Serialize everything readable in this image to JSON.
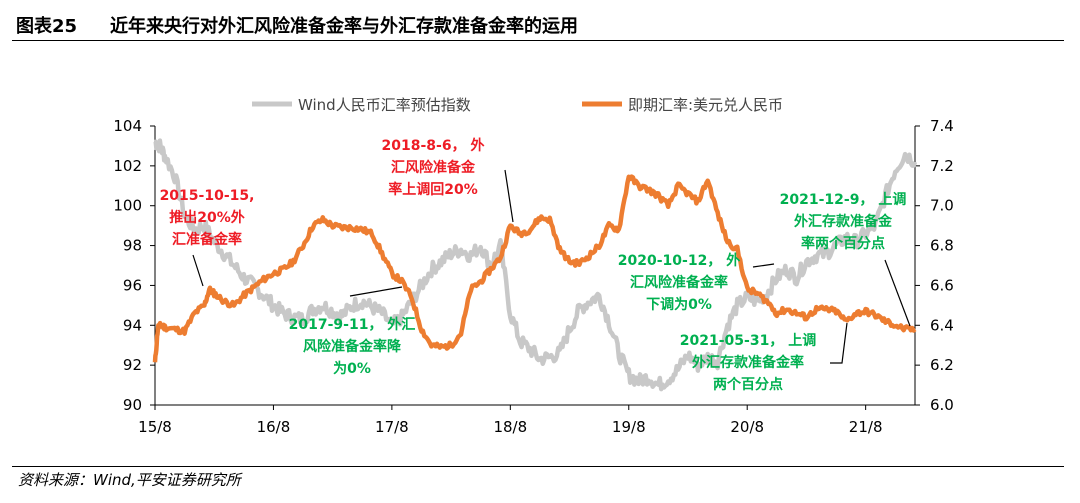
{
  "header": {
    "figure_no": "图表25",
    "title": "近年来央行对外汇风险准备金率与外汇存款准备金率的运用"
  },
  "footer": {
    "source": "资料来源：Wind,平安证券研究所"
  },
  "colors": {
    "index_series": "#c8c8c8",
    "spot_series": "#ed7d31",
    "ann_red": "#ee1c25",
    "ann_green": "#00b050"
  },
  "chart_data": {
    "type": "line",
    "x_ticks": [
      "15/8",
      "16/8",
      "17/8",
      "18/8",
      "19/8",
      "20/8",
      "21/8"
    ],
    "x_tick_t": [
      0,
      12,
      24,
      36,
      48,
      60,
      72
    ],
    "x_range": [
      0,
      77
    ],
    "y_left": {
      "min": 90,
      "max": 104,
      "ticks": [
        "90",
        "92",
        "94",
        "96",
        "98",
        "100",
        "102",
        "104"
      ]
    },
    "y_right": {
      "min": 6.0,
      "max": 7.4,
      "ticks": [
        "6.0",
        "6.2",
        "6.4",
        "6.6",
        "6.8",
        "7.0",
        "7.2",
        "7.4"
      ]
    },
    "legend": [
      "Wind人民币汇率预估指数",
      "即期汇率:美元兑人民币"
    ],
    "series": [
      {
        "name": "Wind人民币汇率预估指数",
        "axis": "left",
        "t": [
          0,
          0.5,
          1,
          2,
          3,
          4,
          5,
          6,
          7,
          8,
          9,
          10,
          11,
          12,
          13,
          14,
          15,
          16,
          17,
          18,
          19,
          20,
          21,
          22,
          23,
          24,
          25,
          26,
          27,
          28,
          29,
          30,
          31,
          32,
          33,
          34,
          35,
          36,
          37,
          38,
          39,
          40,
          41,
          42,
          43,
          44,
          45,
          46,
          47,
          48,
          49,
          50,
          51,
          52,
          53,
          54,
          55,
          56,
          57,
          58,
          59,
          60,
          61,
          62,
          63,
          64,
          65,
          66,
          67,
          68,
          69,
          70,
          71,
          72,
          73,
          74,
          75,
          76,
          77
        ],
        "values": [
          103.2,
          103.0,
          102.5,
          101.5,
          99.5,
          98.8,
          99.0,
          98.2,
          97.6,
          97.0,
          96.4,
          96.0,
          95.5,
          95.0,
          94.6,
          94.4,
          94.3,
          94.8,
          95.0,
          94.7,
          94.5,
          95.0,
          95.2,
          94.9,
          94.6,
          94.0,
          94.4,
          95.2,
          96.0,
          96.8,
          97.2,
          97.6,
          97.8,
          97.5,
          98.0,
          97.0,
          98.0,
          94.6,
          93.2,
          92.8,
          92.3,
          92.4,
          92.6,
          93.8,
          94.8,
          95.2,
          95.5,
          94.2,
          92.6,
          91.5,
          91.2,
          91.4,
          91.0,
          91.3,
          91.8,
          92.5,
          92.0,
          92.4,
          92.2,
          94.0,
          95.0,
          95.4,
          95.2,
          95.6,
          96.4,
          96.8,
          96.4,
          97.2,
          97.5,
          97.6,
          98.0,
          98.4,
          98.2,
          98.6,
          99.0,
          100.5,
          101.8,
          102.6,
          102.2
        ]
      },
      {
        "name": "即期汇率:美元兑人民币",
        "axis": "right",
        "t": [
          0,
          0.3,
          0.6,
          1,
          2,
          3,
          4,
          5,
          5.5,
          6,
          7,
          8,
          9,
          10,
          11,
          12,
          13,
          14,
          15,
          16,
          17,
          18,
          19,
          20,
          21,
          22,
          23,
          24,
          25,
          26,
          27,
          28,
          29,
          30,
          31,
          32,
          33,
          34,
          35,
          36,
          37,
          38,
          39,
          40,
          41,
          42,
          43,
          44,
          45,
          46,
          47,
          48,
          49,
          50,
          51,
          52,
          53,
          54,
          55,
          56,
          57,
          58,
          59,
          60,
          61,
          62,
          63,
          64,
          65,
          66,
          67,
          68,
          69,
          70,
          71,
          72,
          73,
          74,
          75,
          76,
          77
        ],
        "values": [
          6.21,
          6.39,
          6.4,
          6.39,
          6.38,
          6.37,
          6.46,
          6.5,
          6.58,
          6.56,
          6.52,
          6.5,
          6.55,
          6.59,
          6.63,
          6.66,
          6.68,
          6.72,
          6.8,
          6.9,
          6.93,
          6.9,
          6.89,
          6.89,
          6.88,
          6.86,
          6.76,
          6.66,
          6.62,
          6.54,
          6.38,
          6.3,
          6.29,
          6.3,
          6.36,
          6.58,
          6.62,
          6.68,
          6.74,
          6.9,
          6.86,
          6.88,
          6.94,
          6.93,
          6.78,
          6.72,
          6.71,
          6.75,
          6.8,
          6.9,
          6.88,
          7.15,
          7.1,
          7.08,
          7.05,
          7.0,
          7.1,
          7.06,
          7.02,
          7.13,
          6.96,
          6.82,
          6.78,
          6.58,
          6.56,
          6.52,
          6.46,
          6.48,
          6.46,
          6.44,
          6.48,
          6.48,
          6.47,
          6.42,
          6.46,
          6.47,
          6.45,
          6.42,
          6.4,
          6.38,
          6.38
        ]
      }
    ],
    "annotations": [
      {
        "lines": [
          "2015-10-15,",
          "推出20%外",
          "汇准备金率"
        ],
        "color": "red"
      },
      {
        "lines": [
          "2018-8-6， 外",
          "汇风险准备金",
          "率上调回20%"
        ],
        "color": "red"
      },
      {
        "lines": [
          "2017-9-11， 外汇",
          "风险准备金率降",
          "为0%"
        ],
        "color": "green"
      },
      {
        "lines": [
          "2020-10-12， 外",
          "汇风险准备金率",
          "下调为0%"
        ],
        "color": "green"
      },
      {
        "lines": [
          "2021-12-9， 上调",
          "外汇存款准备金",
          "率两个百分点"
        ],
        "color": "green"
      },
      {
        "lines": [
          "2021-05-31， 上调",
          "外汇存款准备金率",
          "两个百分点"
        ],
        "color": "green"
      }
    ]
  }
}
